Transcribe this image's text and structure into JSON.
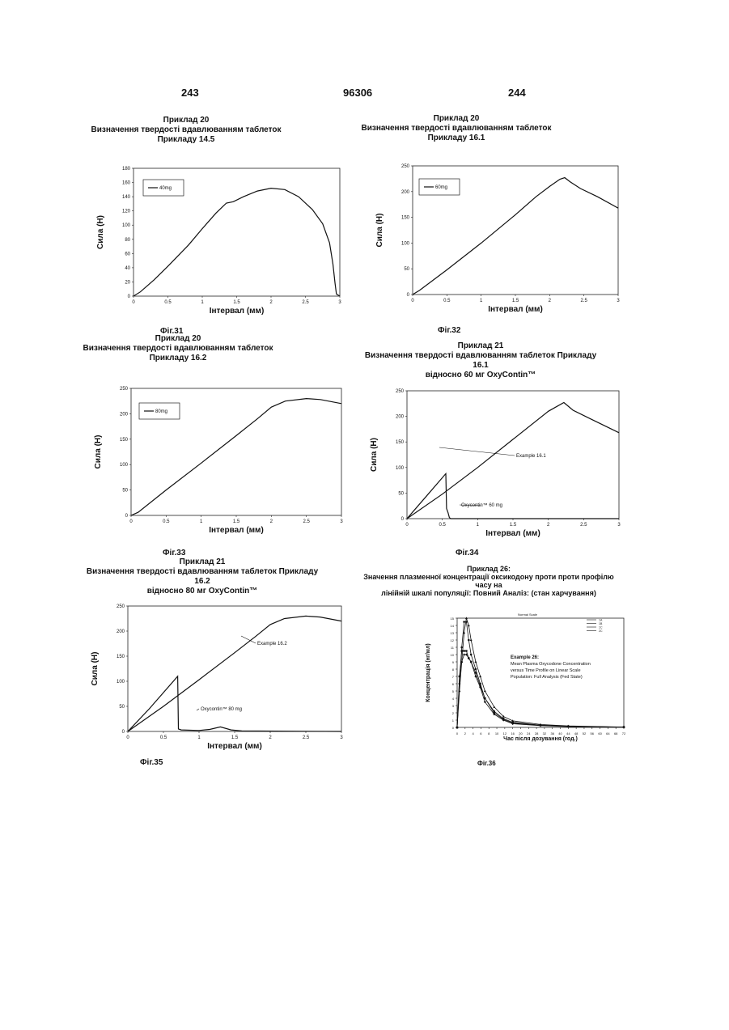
{
  "header": {
    "left_page": "243",
    "patent_no": "96306",
    "right_page": "244"
  },
  "charts": [
    {
      "id": "c31",
      "title": [
        "Приклад 20",
        "Визначення твердості вдавлюванням таблеток",
        "Прикладу 14.5"
      ],
      "fig": "Фіг.31"
    },
    {
      "id": "c32",
      "title": [
        "Приклад 20",
        "Визначення твердості вдавлюванням таблеток",
        "Прикладу 16.1"
      ],
      "fig": "Фіг.32"
    },
    {
      "id": "c33",
      "title": [
        "Приклад 20",
        "Визначення твердості вдавлюванням таблеток",
        "Прикладу 16.2"
      ],
      "fig": "Фіг.33"
    },
    {
      "id": "c34",
      "title": [
        "Приклад 21",
        "Визначення твердості вдавлюванням таблеток Прикладу 16.1",
        "відносно 60 мг OxyContin™"
      ],
      "fig": "Фіг.34"
    },
    {
      "id": "c35",
      "title": [
        "Приклад 21",
        "Визначення твердості вдавлюванням таблеток Прикладу 16.2",
        "відносно 80 мг OxyContin™"
      ],
      "fig": "Фіг.35"
    },
    {
      "id": "c36",
      "title": [
        "Приклад 26:",
        "Значення плазменної концентрації оксикодону проти проти профілю часу на",
        "лінійній шкалі популяції: Повний Аналіз: (стан харчування)"
      ],
      "fig": "Фіг.36"
    }
  ],
  "chart_data": [
    {
      "type": "line",
      "ylabel": "Сила (Н)",
      "xlabel": "Інтервал (мм)",
      "xlim": [
        0,
        3
      ],
      "ylim": [
        0,
        180
      ],
      "xticks": [
        "0",
        "0.5",
        "1",
        "1.5",
        "2",
        "2.5",
        "3"
      ],
      "yticks": [
        "0",
        "20",
        "40",
        "60",
        "80",
        "100",
        "120",
        "140",
        "160",
        "180"
      ],
      "legend": "40mg",
      "legend_position": "top-left",
      "series": [
        {
          "name": "40mg",
          "x": [
            0,
            0.1,
            0.3,
            0.5,
            0.8,
            1.0,
            1.2,
            1.35,
            1.45,
            1.6,
            1.8,
            2.0,
            2.2,
            2.4,
            2.6,
            2.75,
            2.85,
            2.9,
            2.93,
            2.95,
            3.0
          ],
          "y": [
            0,
            6,
            23,
            42,
            72,
            95,
            117,
            131,
            133,
            140,
            148,
            152,
            150,
            140,
            122,
            102,
            75,
            45,
            18,
            3,
            0
          ]
        }
      ]
    },
    {
      "type": "line",
      "ylabel": "Сила (Н)",
      "xlabel": "Інтервал (мм)",
      "xlim": [
        0,
        3
      ],
      "ylim": [
        0,
        250
      ],
      "xticks": [
        "0",
        "0.5",
        "1",
        "1.5",
        "2",
        "2.5",
        "3"
      ],
      "yticks": [
        "0",
        "50",
        "100",
        "150",
        "200",
        "250"
      ],
      "legend": "60mg",
      "legend_position": "top-left",
      "series": [
        {
          "name": "60mg",
          "x": [
            0,
            0.1,
            0.5,
            1.0,
            1.5,
            1.8,
            2.0,
            2.15,
            2.22,
            2.3,
            2.45,
            2.7,
            3.0
          ],
          "y": [
            0,
            8,
            48,
            100,
            155,
            190,
            210,
            224,
            227,
            219,
            206,
            190,
            168
          ]
        }
      ]
    },
    {
      "type": "line",
      "ylabel": "Сила (Н)",
      "xlabel": "Інтервал (мм)",
      "xlim": [
        0,
        3
      ],
      "ylim": [
        0,
        250
      ],
      "xticks": [
        "0",
        "0.5",
        "1",
        "1.5",
        "2",
        "2.5",
        "3"
      ],
      "yticks": [
        "0",
        "50",
        "100",
        "150",
        "200",
        "250"
      ],
      "legend": "80mg",
      "legend_position": "top-left",
      "series": [
        {
          "name": "80mg",
          "x": [
            0,
            0.1,
            0.5,
            1.0,
            1.5,
            1.8,
            2.0,
            2.2,
            2.5,
            2.7,
            3.0
          ],
          "y": [
            0,
            6,
            50,
            103,
            157,
            190,
            213,
            225,
            230,
            228,
            220
          ]
        }
      ]
    },
    {
      "type": "line",
      "ylabel": "Сила (Н)",
      "xlabel": "Інтервал (мм)",
      "xlim": [
        0,
        3
      ],
      "ylim": [
        0,
        250
      ],
      "xticks": [
        "0",
        "0.5",
        "1",
        "1.5",
        "2",
        "2.5",
        "3"
      ],
      "yticks": [
        "0",
        "50",
        "100",
        "150",
        "200",
        "250"
      ],
      "annotations": [
        "Example 16.1",
        "Oxycontin™ 60 mg"
      ],
      "series": [
        {
          "name": "Example 16.1",
          "x": [
            0,
            0.5,
            1.0,
            1.5,
            2.0,
            2.22,
            2.35,
            2.6,
            3.0
          ],
          "y": [
            0,
            48,
            100,
            155,
            210,
            227,
            212,
            195,
            168
          ]
        },
        {
          "name": "Oxycontin™ 60 mg",
          "x": [
            0,
            0.3,
            0.55,
            0.56,
            0.58,
            0.6,
            0.62,
            3.0
          ],
          "y": [
            0,
            48,
            88,
            20,
            12,
            2,
            0,
            0
          ]
        }
      ]
    },
    {
      "type": "line",
      "ylabel": "Сила (Н)",
      "xlabel": "Інтервал (мм)",
      "xlim": [
        0,
        3
      ],
      "ylim": [
        0,
        250
      ],
      "xticks": [
        "0",
        "0.5",
        "1",
        "1.5",
        "2",
        "2.5",
        "3"
      ],
      "yticks": [
        "0",
        "50",
        "100",
        "150",
        "200",
        "250"
      ],
      "annotations": [
        "Example 16.2",
        "Oxycontin™ 80 mg"
      ],
      "series": [
        {
          "name": "Example 16.2",
          "x": [
            0,
            0.5,
            1.0,
            1.5,
            1.8,
            2.0,
            2.2,
            2.5,
            2.7,
            3.0
          ],
          "y": [
            0,
            50,
            103,
            157,
            190,
            213,
            225,
            230,
            228,
            220
          ]
        },
        {
          "name": "Oxycontin™ 80 mg",
          "x": [
            0,
            0.3,
            0.7,
            0.71,
            0.75,
            1.0,
            1.15,
            1.3,
            1.45,
            1.6,
            3.0
          ],
          "y": [
            0,
            45,
            110,
            5,
            3,
            2,
            4,
            9,
            3,
            1,
            0
          ]
        }
      ]
    },
    {
      "type": "line",
      "ylabel": "Концентрація (нг/мл)",
      "xlabel": "Час після дозування (год.)",
      "xlim": [
        0,
        72
      ],
      "ylim": [
        0,
        15
      ],
      "xticks": [
        "0",
        "2",
        "4",
        "6",
        "8",
        "10",
        "12",
        "16",
        "20",
        "24",
        "28",
        "32",
        "36",
        "40",
        "44",
        "48",
        "52",
        "56",
        "60",
        "64",
        "68",
        "72"
      ],
      "yticks": [
        "0",
        "1",
        "2",
        "3",
        "4",
        "5",
        "6",
        "7",
        "8",
        "9",
        "10",
        "11",
        "12",
        "13",
        "14",
        "15"
      ],
      "small_title": "Normal Scale",
      "annotation": [
        "Example 26:",
        "Mean Plasma Oxycodone Concentration",
        "versus Time Profile on Linear Scale",
        "Population: Full Analysis (Fed State)"
      ],
      "series": [
        {
          "name": "1A",
          "x": [
            0,
            1,
            2,
            3,
            4,
            5,
            6,
            8,
            10,
            12,
            16,
            20,
            24,
            36,
            48,
            72
          ],
          "y": [
            0,
            6,
            11,
            14.5,
            14.5,
            12,
            10,
            8,
            6,
            4,
            2.2,
            1.2,
            0.7,
            0.3,
            0.15,
            0.05
          ]
        },
        {
          "name": "1B",
          "x": [
            0,
            1,
            2,
            3,
            4,
            5,
            6,
            8,
            10,
            12,
            16,
            20,
            24,
            36,
            48,
            72
          ],
          "y": [
            0,
            7,
            10.5,
            10.5,
            10.5,
            9.5,
            9,
            7.5,
            5.7,
            4,
            2,
            1.1,
            0.6,
            0.3,
            0.15,
            0.05
          ]
        },
        {
          "name": "1C",
          "x": [
            0,
            1,
            2,
            3,
            4,
            5,
            6,
            8,
            10,
            12,
            16,
            20,
            24,
            36,
            48,
            72
          ],
          "y": [
            0,
            5,
            9,
            13,
            15,
            14,
            12,
            9,
            7,
            5,
            2.8,
            1.5,
            0.9,
            0.4,
            0.2,
            0.05
          ]
        },
        {
          "name": "2C",
          "x": [
            0,
            1,
            2,
            3,
            4,
            5,
            6,
            8,
            10,
            12,
            16,
            20,
            24,
            36,
            48,
            72
          ],
          "y": [
            0,
            7,
            9,
            10,
            10,
            9.5,
            9,
            7,
            5.5,
            3.5,
            1.8,
            1,
            0.5,
            0.25,
            0.1,
            0.05
          ]
        }
      ]
    }
  ]
}
